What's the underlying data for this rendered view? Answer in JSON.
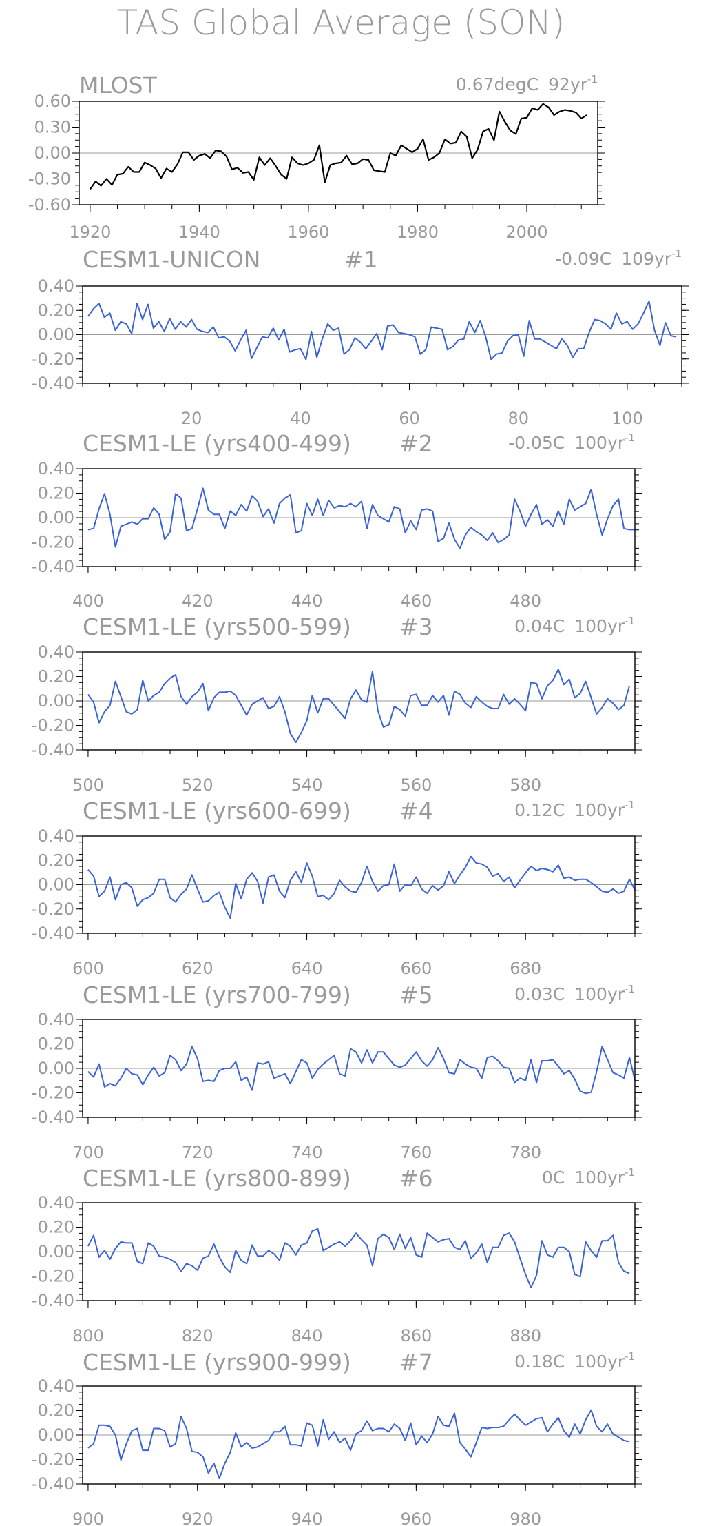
{
  "title": "TAS Global Average (SON)",
  "colors": {
    "observed": "#000000",
    "model": "#3a62d9",
    "text": "#9a9a9a",
    "zero": "#9a9a9a",
    "frame": "#000000"
  },
  "chart_data": [
    {
      "type": "line",
      "name": "MLOST",
      "trend_value": "0.67degC",
      "trend_period": "92yr",
      "trend_exp": "-1",
      "color": "#000000",
      "x_start": 1920,
      "xlim": [
        1918,
        2013
      ],
      "ylim": [
        -0.6,
        0.6
      ],
      "yticks": [
        "0.60",
        "0.30",
        "0.00",
        "-0.30",
        "-0.60"
      ],
      "xticks": [
        "1920",
        "1940",
        "1960",
        "1980",
        "2000"
      ],
      "y": [
        -0.42,
        -0.33,
        -0.38,
        -0.3,
        -0.37,
        -0.25,
        -0.24,
        -0.16,
        -0.22,
        -0.22,
        -0.11,
        -0.14,
        -0.18,
        -0.29,
        -0.18,
        -0.22,
        -0.13,
        0.01,
        0.01,
        -0.08,
        -0.03,
        -0.01,
        -0.06,
        0.03,
        0.02,
        -0.04,
        -0.19,
        -0.17,
        -0.23,
        -0.22,
        -0.31,
        -0.05,
        -0.14,
        -0.06,
        -0.15,
        -0.25,
        -0.3,
        -0.05,
        -0.12,
        -0.14,
        -0.12,
        -0.08,
        0.09,
        -0.34,
        -0.14,
        -0.12,
        -0.11,
        -0.03,
        -0.13,
        -0.12,
        -0.07,
        -0.08,
        -0.2,
        -0.21,
        -0.22,
        0.0,
        -0.03,
        0.09,
        0.05,
        0.01,
        0.05,
        0.16,
        -0.08,
        -0.05,
        0.0,
        0.16,
        0.11,
        0.12,
        0.25,
        0.19,
        -0.06,
        0.04,
        0.25,
        0.28,
        0.15,
        0.48,
        0.36,
        0.26,
        0.22,
        0.4,
        0.41,
        0.52,
        0.5,
        0.57,
        0.53,
        0.44,
        0.48,
        0.5,
        0.49,
        0.47,
        0.4,
        0.44
      ]
    },
    {
      "type": "line",
      "name": "CESM1-UNICON",
      "run": "#1",
      "trend_value": "-0.09C",
      "trend_period": "109yr",
      "trend_exp": "-1",
      "color": "#3a62d9",
      "x_start": 1,
      "xlim": [
        0,
        110
      ],
      "ylim": [
        -0.45,
        0.45
      ],
      "yticks": [
        "0.40",
        "0.20",
        "0.00",
        "-0.20",
        "-0.40"
      ],
      "xticks": [
        "20",
        "40",
        "60",
        "80",
        "100"
      ],
      "y": [
        0.17,
        0.24,
        0.29,
        0.16,
        0.2,
        0.04,
        0.12,
        0.1,
        0.01,
        0.29,
        0.14,
        0.28,
        0.06,
        0.12,
        0.03,
        0.15,
        0.05,
        0.12,
        0.07,
        0.14,
        0.05,
        0.03,
        0.02,
        0.07,
        -0.03,
        -0.02,
        -0.06,
        -0.15,
        -0.05,
        0.04,
        -0.22,
        -0.12,
        -0.02,
        -0.03,
        0.06,
        -0.05,
        0.05,
        -0.16,
        -0.14,
        -0.13,
        -0.23,
        0.03,
        -0.21,
        -0.04,
        0.1,
        0.04,
        0.06,
        -0.18,
        -0.14,
        -0.03,
        -0.07,
        -0.13,
        -0.06,
        0.01,
        -0.14,
        0.08,
        0.09,
        0.02,
        0.01,
        0.0,
        -0.02,
        -0.18,
        -0.14,
        0.07,
        0.06,
        0.05,
        -0.14,
        -0.11,
        -0.05,
        -0.04,
        0.12,
        0.02,
        0.13,
        -0.02,
        -0.23,
        -0.18,
        -0.17,
        -0.06,
        -0.01,
        0.0,
        -0.2,
        0.13,
        -0.04,
        -0.04,
        -0.07,
        -0.1,
        -0.13,
        -0.04,
        -0.1,
        -0.21,
        -0.13,
        -0.13,
        0.02,
        0.14,
        0.13,
        0.1,
        0.05,
        0.2,
        0.1,
        0.12,
        0.05,
        0.1,
        0.2,
        0.31,
        0.04,
        -0.1,
        0.11,
        -0.01,
        -0.02
      ]
    },
    {
      "type": "line",
      "name": "CESM1-LE (yrs400-499)",
      "run": "#2",
      "trend_value": "-0.05C",
      "trend_period": "100yr",
      "trend_exp": "-1",
      "color": "#3a62d9",
      "x_start": 400,
      "xlim": [
        399,
        500
      ],
      "ylim": [
        -0.45,
        0.45
      ],
      "yticks": [
        "0.40",
        "0.20",
        "0.00",
        "-0.20",
        "-0.40"
      ],
      "xticks": [
        "400",
        "420",
        "440",
        "460",
        "480"
      ],
      "y": [
        -0.11,
        -0.1,
        0.08,
        0.22,
        0.03,
        -0.27,
        -0.08,
        -0.06,
        -0.04,
        -0.06,
        -0.01,
        -0.01,
        0.09,
        0.03,
        -0.2,
        -0.13,
        0.22,
        0.18,
        -0.12,
        -0.1,
        0.08,
        0.27,
        0.07,
        0.03,
        0.03,
        -0.1,
        0.06,
        0.02,
        0.12,
        0.06,
        0.2,
        0.15,
        0.01,
        0.08,
        -0.05,
        0.13,
        0.18,
        0.21,
        -0.14,
        -0.12,
        0.13,
        0.02,
        0.17,
        0.02,
        0.16,
        0.09,
        0.11,
        0.1,
        0.13,
        0.1,
        0.15,
        -0.1,
        0.12,
        0.02,
        -0.01,
        -0.04,
        0.1,
        0.08,
        -0.14,
        -0.03,
        -0.11,
        0.07,
        0.08,
        0.06,
        -0.22,
        -0.19,
        -0.05,
        -0.2,
        -0.28,
        -0.16,
        -0.09,
        -0.13,
        -0.16,
        -0.21,
        -0.14,
        -0.23,
        -0.2,
        -0.16,
        0.17,
        0.06,
        -0.08,
        0.03,
        0.12,
        -0.06,
        -0.02,
        -0.08,
        0.06,
        -0.06,
        0.17,
        0.07,
        0.1,
        0.13,
        0.26,
        0.03,
        -0.16,
        -0.01,
        0.11,
        0.17,
        -0.1,
        -0.11,
        -0.11
      ]
    },
    {
      "type": "line",
      "name": "CESM1-LE (yrs500-599)",
      "run": "#3",
      "trend_value": "0.04C",
      "trend_period": "100yr",
      "trend_exp": "-1",
      "color": "#3a62d9",
      "x_start": 500,
      "xlim": [
        499,
        600
      ],
      "ylim": [
        -0.45,
        0.45
      ],
      "yticks": [
        "0.40",
        "0.20",
        "0.00",
        "-0.20",
        "-0.40"
      ],
      "xticks": [
        "500",
        "520",
        "540",
        "560",
        "580"
      ],
      "y": [
        0.06,
        -0.01,
        -0.2,
        -0.1,
        -0.04,
        0.18,
        0.04,
        -0.1,
        -0.12,
        -0.08,
        0.19,
        0.0,
        0.05,
        0.08,
        0.16,
        0.21,
        0.24,
        0.04,
        -0.03,
        0.04,
        0.08,
        0.16,
        -0.09,
        0.03,
        0.08,
        0.08,
        0.09,
        0.05,
        -0.04,
        -0.13,
        -0.03,
        0.0,
        0.03,
        -0.07,
        -0.05,
        0.04,
        -0.1,
        -0.3,
        -0.38,
        -0.29,
        -0.18,
        0.05,
        -0.11,
        0.02,
        0.02,
        -0.04,
        -0.1,
        -0.16,
        0.02,
        0.1,
        0.01,
        -0.01,
        0.27,
        -0.09,
        -0.24,
        -0.22,
        -0.05,
        -0.08,
        -0.14,
        0.05,
        0.06,
        -0.04,
        -0.04,
        0.05,
        -0.01,
        0.05,
        -0.13,
        0.09,
        0.06,
        -0.02,
        -0.06,
        0.04,
        -0.01,
        -0.05,
        -0.07,
        -0.07,
        0.06,
        -0.03,
        0.02,
        -0.03,
        -0.09,
        0.17,
        0.16,
        0.02,
        0.14,
        0.19,
        0.29,
        0.15,
        0.2,
        0.03,
        0.07,
        0.18,
        0.03,
        -0.12,
        -0.06,
        0.02,
        -0.02,
        -0.08,
        -0.04,
        0.14
      ]
    },
    {
      "type": "line",
      "name": "CESM1-LE (yrs600-699)",
      "run": "#4",
      "trend_value": "0.12C",
      "trend_period": "100yr",
      "trend_exp": "-1",
      "color": "#3a62d9",
      "x_start": 600,
      "xlim": [
        599,
        700
      ],
      "ylim": [
        -0.45,
        0.45
      ],
      "yticks": [
        "0.40",
        "0.20",
        "0.00",
        "-0.20",
        "-0.40"
      ],
      "xticks": [
        "600",
        "620",
        "640",
        "660",
        "680"
      ],
      "y": [
        0.14,
        0.08,
        -0.11,
        -0.06,
        0.07,
        -0.14,
        0.0,
        0.02,
        -0.03,
        -0.2,
        -0.14,
        -0.12,
        -0.08,
        0.05,
        0.05,
        -0.12,
        -0.16,
        -0.09,
        -0.04,
        0.09,
        -0.04,
        -0.16,
        -0.15,
        -0.1,
        -0.07,
        -0.21,
        -0.31,
        0.01,
        -0.13,
        0.05,
        0.11,
        0.03,
        -0.17,
        0.07,
        0.09,
        -0.06,
        -0.12,
        0.04,
        0.12,
        0.02,
        0.2,
        0.08,
        -0.11,
        -0.1,
        -0.14,
        -0.08,
        0.04,
        -0.02,
        -0.06,
        -0.07,
        0.02,
        0.17,
        0.03,
        -0.06,
        -0.01,
        0.0,
        0.19,
        -0.06,
        0.0,
        -0.01,
        0.07,
        -0.04,
        -0.08,
        -0.01,
        -0.05,
        -0.01,
        0.12,
        0.01,
        0.09,
        0.16,
        0.26,
        0.2,
        0.19,
        0.16,
        0.08,
        0.1,
        0.03,
        0.07,
        -0.03,
        0.04,
        0.11,
        0.17,
        0.13,
        0.15,
        0.14,
        0.12,
        0.18,
        0.06,
        0.07,
        0.04,
        0.05,
        0.05,
        0.02,
        -0.02,
        -0.06,
        -0.07,
        -0.04,
        -0.08,
        -0.06,
        0.05,
        -0.05
      ]
    },
    {
      "type": "line",
      "name": "CESM1-LE (yrs700-799)",
      "run": "#5",
      "trend_value": "0.03C",
      "trend_period": "100yr",
      "trend_exp": "-1",
      "color": "#3a62d9",
      "x_start": 700,
      "xlim": [
        699,
        800
      ],
      "ylim": [
        -0.45,
        0.45
      ],
      "yticks": [
        "0.40",
        "0.20",
        "0.00",
        "-0.20",
        "-0.40"
      ],
      "xticks": [
        "700",
        "720",
        "740",
        "760",
        "780"
      ],
      "y": [
        -0.03,
        -0.08,
        0.04,
        -0.17,
        -0.14,
        -0.16,
        -0.09,
        0.0,
        -0.05,
        -0.06,
        -0.15,
        -0.06,
        0.01,
        -0.07,
        -0.04,
        0.12,
        0.08,
        -0.02,
        0.04,
        0.2,
        0.09,
        -0.12,
        -0.11,
        -0.12,
        -0.02,
        0.0,
        0.0,
        0.06,
        -0.11,
        -0.08,
        -0.2,
        0.05,
        0.04,
        0.06,
        -0.09,
        -0.07,
        -0.05,
        -0.14,
        -0.03,
        0.08,
        0.05,
        -0.09,
        -0.01,
        0.04,
        0.08,
        0.12,
        -0.05,
        -0.07,
        0.18,
        0.15,
        0.05,
        0.17,
        0.05,
        0.15,
        0.15,
        0.09,
        0.03,
        0.01,
        0.03,
        0.09,
        0.15,
        0.07,
        0.02,
        0.08,
        0.19,
        0.09,
        -0.04,
        -0.05,
        0.08,
        0.04,
        0.01,
        0.0,
        -0.09,
        0.1,
        0.11,
        0.07,
        0.01,
        0.0,
        -0.13,
        -0.09,
        -0.11,
        0.08,
        -0.13,
        0.07,
        0.07,
        0.08,
        0.02,
        -0.05,
        -0.02,
        -0.1,
        -0.21,
        -0.23,
        -0.22,
        -0.03,
        0.2,
        0.08,
        -0.04,
        -0.06,
        -0.09,
        0.1,
        -0.11
      ]
    },
    {
      "type": "line",
      "name": "CESM1-LE (yrs800-899)",
      "run": "#6",
      "trend_value": "0C",
      "trend_period": "100yr",
      "trend_exp": "-1",
      "color": "#3a62d9",
      "x_start": 800,
      "xlim": [
        799,
        900
      ],
      "ylim": [
        -0.45,
        0.45
      ],
      "yticks": [
        "0.40",
        "0.20",
        "0.00",
        "-0.20",
        "-0.40"
      ],
      "xticks": [
        "800",
        "820",
        "840",
        "860",
        "880"
      ],
      "y": [
        0.05,
        0.15,
        -0.05,
        0.01,
        -0.07,
        0.03,
        0.09,
        0.08,
        0.08,
        -0.09,
        -0.11,
        0.08,
        0.05,
        -0.04,
        -0.05,
        -0.07,
        -0.1,
        -0.18,
        -0.11,
        -0.13,
        -0.17,
        -0.06,
        -0.04,
        0.07,
        -0.05,
        -0.14,
        -0.19,
        0.01,
        -0.08,
        -0.11,
        0.06,
        -0.04,
        -0.04,
        0.01,
        -0.02,
        -0.08,
        0.08,
        0.05,
        -0.03,
        0.06,
        0.08,
        0.19,
        0.21,
        0.01,
        0.04,
        0.07,
        0.09,
        0.05,
        0.1,
        0.17,
        0.11,
        0.06,
        -0.13,
        0.12,
        0.16,
        0.13,
        0.02,
        0.16,
        0.03,
        0.13,
        -0.03,
        -0.05,
        0.17,
        0.13,
        0.09,
        0.11,
        0.12,
        0.04,
        0.02,
        0.1,
        -0.06,
        -0.01,
        0.07,
        -0.1,
        0.04,
        0.04,
        0.15,
        0.17,
        0.09,
        -0.06,
        -0.21,
        -0.33,
        -0.22,
        0.1,
        -0.03,
        -0.05,
        0.04,
        0.04,
        0.0,
        -0.21,
        -0.23,
        0.09,
        0.01,
        -0.05,
        0.1,
        0.1,
        0.15,
        -0.1,
        -0.18,
        -0.2
      ]
    },
    {
      "type": "line",
      "name": "CESM1-LE (yrs900-999)",
      "run": "#7",
      "trend_value": "0.18C",
      "trend_period": "100yr",
      "trend_exp": "-1",
      "color": "#3a62d9",
      "x_start": 900,
      "xlim": [
        899,
        1000
      ],
      "ylim": [
        -0.45,
        0.45
      ],
      "yticks": [
        "0.40",
        "0.20",
        "0.00",
        "-0.20",
        "-0.40"
      ],
      "xticks": [
        "900",
        "920",
        "940",
        "960",
        "980"
      ],
      "y": [
        -0.12,
        -0.08,
        0.09,
        0.09,
        0.08,
        0.0,
        -0.23,
        -0.08,
        0.04,
        0.06,
        -0.14,
        -0.14,
        0.06,
        0.06,
        0.04,
        -0.11,
        -0.08,
        0.17,
        0.06,
        -0.15,
        -0.16,
        -0.2,
        -0.35,
        -0.26,
        -0.4,
        -0.26,
        -0.16,
        0.02,
        -0.11,
        -0.07,
        -0.12,
        -0.11,
        -0.08,
        -0.05,
        0.03,
        0.03,
        0.08,
        -0.09,
        -0.09,
        -0.1,
        0.11,
        0.09,
        -0.1,
        0.14,
        -0.04,
        0.03,
        -0.07,
        -0.03,
        -0.14,
        0.01,
        0.04,
        0.13,
        0.04,
        0.06,
        0.06,
        0.03,
        0.1,
        0.06,
        -0.05,
        0.11,
        -0.09,
        -0.01,
        -0.07,
        0.01,
        0.17,
        0.09,
        0.08,
        0.2,
        -0.07,
        -0.13,
        -0.2,
        -0.07,
        0.07,
        0.06,
        0.07,
        0.07,
        0.08,
        0.14,
        0.19,
        0.14,
        0.09,
        0.12,
        0.15,
        0.16,
        0.03,
        0.1,
        0.16,
        0.04,
        -0.02,
        0.1,
        0.01,
        0.14,
        0.23,
        0.08,
        0.03,
        0.1,
        0.01,
        -0.02,
        -0.05,
        -0.06
      ]
    }
  ]
}
